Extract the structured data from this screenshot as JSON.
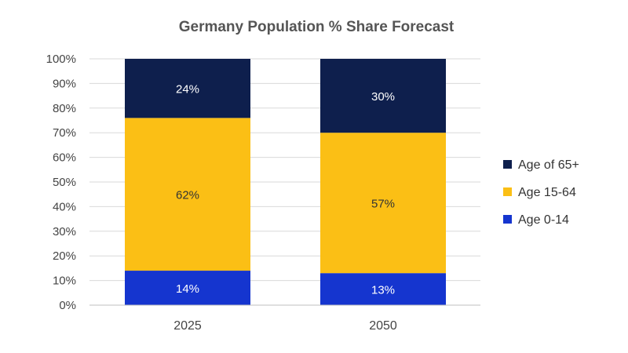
{
  "chart_data": {
    "type": "bar",
    "stacked": true,
    "title": "Germany Population % Share Forecast",
    "categories": [
      "2025",
      "2050"
    ],
    "series": [
      {
        "name": "Age 0-14",
        "values": [
          14,
          13
        ],
        "labels": [
          "14%",
          "13%"
        ],
        "color": "#1535cf",
        "label_color": "#ffffff"
      },
      {
        "name": "Age 15-64",
        "values": [
          62,
          57
        ],
        "labels": [
          "62%",
          "57%"
        ],
        "color": "#fbbf15",
        "label_color": "#333333"
      },
      {
        "name": "Age of 65+",
        "values": [
          24,
          30
        ],
        "labels": [
          "24%",
          "30%"
        ],
        "color": "#0e1f4d",
        "label_color": "#ffffff"
      }
    ],
    "y_ticks": [
      "0%",
      "10%",
      "20%",
      "30%",
      "40%",
      "50%",
      "60%",
      "70%",
      "80%",
      "90%",
      "100%"
    ],
    "ylim": [
      0,
      100
    ],
    "xlabel": "",
    "ylabel": "",
    "grid": true,
    "legend_position": "right",
    "legend_order": [
      "Age of 65+",
      "Age 15-64",
      "Age 0-14"
    ]
  }
}
